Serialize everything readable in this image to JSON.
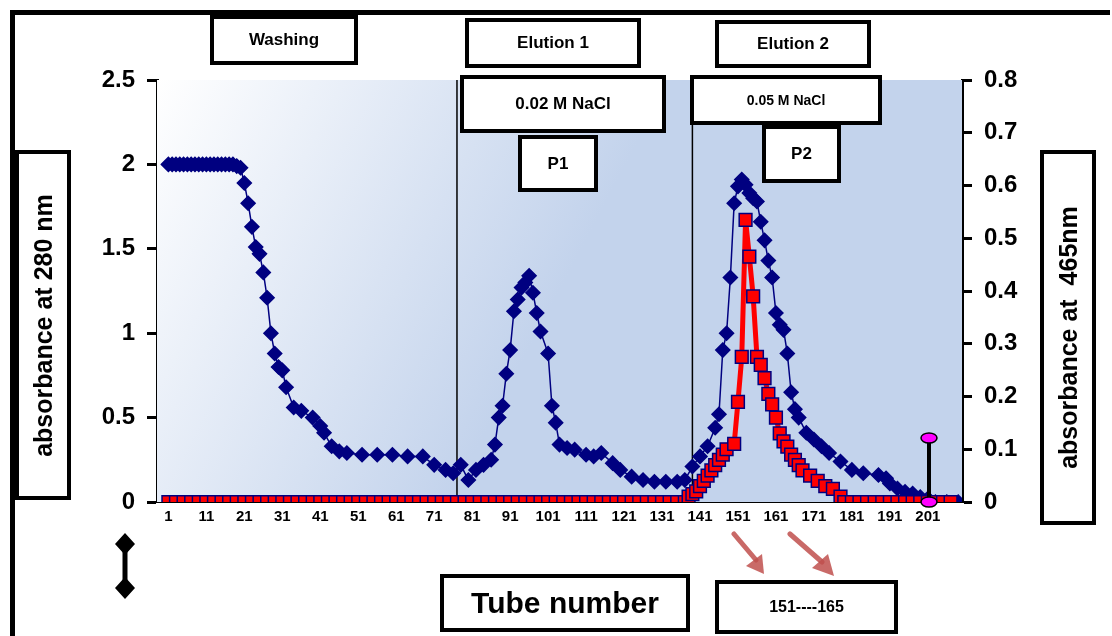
{
  "chart_data": {
    "type": "line",
    "xlabel": "Tube number",
    "ylabel": "absorbance at 280 nm",
    "y2label": "absorbance at  465nm",
    "xlim": [
      -2,
      210
    ],
    "xticks": [
      1,
      11,
      21,
      31,
      41,
      51,
      61,
      71,
      81,
      91,
      101,
      111,
      121,
      131,
      141,
      151,
      161,
      171,
      181,
      191,
      201
    ],
    "ylim": [
      0,
      2.5
    ],
    "yticks": [
      0,
      0.5,
      1,
      1.5,
      2,
      2.5
    ],
    "y2lim": [
      0,
      0.8
    ],
    "y2ticks": [
      0,
      0.1,
      0.2,
      0.3,
      0.4,
      0.5,
      0.6,
      0.7,
      0.8
    ],
    "legend": false,
    "series": [
      {
        "color": "#000080",
        "marker": "diamond",
        "x": [
          1,
          2,
          3,
          4,
          5,
          6,
          7,
          8,
          9,
          10,
          11,
          12,
          13,
          14,
          15,
          16,
          17,
          18,
          19,
          20,
          21,
          22,
          23,
          24,
          25,
          26,
          27,
          28,
          29,
          30,
          31,
          32,
          34,
          36,
          39,
          41,
          42,
          44,
          46,
          48,
          52,
          56,
          60,
          64,
          68,
          71,
          74,
          76,
          78,
          80,
          82,
          84,
          86,
          87,
          88,
          89,
          90,
          91,
          92,
          93,
          94,
          95,
          96,
          97,
          98,
          99,
          101,
          102,
          103,
          104,
          106,
          108,
          111,
          113,
          115,
          118,
          120,
          123,
          126,
          129,
          132,
          135,
          137,
          139,
          141,
          143,
          145,
          146,
          147,
          148,
          149,
          150,
          151,
          152,
          153,
          154,
          155,
          156,
          157,
          158,
          159,
          160,
          161,
          162,
          163,
          164,
          165,
          166,
          167,
          169,
          171,
          173,
          175,
          178,
          181,
          184,
          188,
          190,
          191,
          193,
          195,
          197,
          199,
          201,
          203,
          206,
          209
        ],
        "values": [
          2,
          2,
          2,
          2,
          2,
          2,
          2,
          2,
          2,
          2,
          2,
          2,
          2,
          2,
          2,
          2,
          2,
          2,
          1.99,
          1.98,
          1.89,
          1.77,
          1.63,
          1.51,
          1.47,
          1.36,
          1.21,
          1.0,
          0.88,
          0.8,
          0.78,
          0.68,
          0.56,
          0.54,
          0.5,
          0.45,
          0.41,
          0.33,
          0.3,
          0.29,
          0.28,
          0.28,
          0.28,
          0.27,
          0.27,
          0.22,
          0.19,
          0.17,
          0.22,
          0.13,
          0.19,
          0.22,
          0.25,
          0.34,
          0.5,
          0.57,
          0.76,
          0.9,
          1.13,
          1.2,
          1.27,
          1.3,
          1.34,
          1.24,
          1.12,
          1.01,
          0.88,
          0.57,
          0.47,
          0.34,
          0.32,
          0.31,
          0.28,
          0.27,
          0.29,
          0.23,
          0.19,
          0.15,
          0.13,
          0.12,
          0.12,
          0.12,
          0.13,
          0.21,
          0.27,
          0.33,
          0.44,
          0.52,
          0.9,
          1.0,
          1.33,
          1.77,
          1.87,
          1.91,
          1.88,
          1.83,
          1.8,
          1.78,
          1.66,
          1.55,
          1.43,
          1.33,
          1.12,
          1.05,
          1.02,
          0.88,
          0.65,
          0.55,
          0.5,
          0.41,
          0.37,
          0.33,
          0.29,
          0.24,
          0.19,
          0.17,
          0.16,
          0.14,
          0.11,
          0.08,
          0.06,
          0.05,
          0.03,
          0.02,
          0,
          0,
          0
        ]
      },
      {
        "color": "#ff0000",
        "marker": "square",
        "axis": "y2",
        "x": [
          1,
          3,
          5,
          7,
          9,
          11,
          13,
          15,
          17,
          19,
          21,
          23,
          25,
          27,
          29,
          31,
          33,
          35,
          37,
          39,
          41,
          43,
          45,
          47,
          49,
          51,
          53,
          55,
          57,
          59,
          61,
          63,
          65,
          67,
          69,
          71,
          73,
          75,
          77,
          79,
          81,
          83,
          85,
          87,
          89,
          91,
          93,
          95,
          97,
          99,
          101,
          103,
          105,
          107,
          109,
          111,
          113,
          115,
          117,
          119,
          121,
          123,
          125,
          127,
          129,
          131,
          133,
          135,
          137,
          138,
          139,
          140,
          141,
          142,
          143,
          144,
          145,
          146,
          147,
          148,
          150,
          151,
          152,
          153,
          154,
          155,
          156,
          157,
          158,
          159,
          160,
          161,
          162,
          163,
          164,
          165,
          166,
          167,
          168,
          170,
          172,
          174,
          176,
          178,
          179,
          181,
          183,
          185,
          187,
          189,
          191,
          193,
          195,
          197,
          199,
          201,
          203,
          205,
          207
        ],
        "values": [
          0,
          0,
          0,
          0,
          0,
          0,
          0,
          0,
          0,
          0,
          0,
          0,
          0,
          0,
          0,
          0,
          0,
          0,
          0,
          0,
          0,
          0,
          0,
          0,
          0,
          0,
          0,
          0,
          0,
          0,
          0,
          0,
          0,
          0,
          0,
          0,
          0,
          0,
          0,
          0,
          0,
          0,
          0,
          0,
          0,
          0,
          0,
          0,
          0,
          0,
          0,
          0,
          0,
          0,
          0,
          0,
          0,
          0,
          0,
          0,
          0,
          0,
          0,
          0,
          0,
          0,
          0,
          0,
          0,
          0.01,
          0.015,
          0.02,
          0.03,
          0.04,
          0.05,
          0.06,
          0.07,
          0.08,
          0.09,
          0.1,
          0.11,
          0.19,
          0.275,
          0.535,
          0.465,
          0.39,
          0.275,
          0.26,
          0.235,
          0.205,
          0.185,
          0.16,
          0.13,
          0.115,
          0.105,
          0.09,
          0.08,
          0.07,
          0.06,
          0.05,
          0.04,
          0.03,
          0.025,
          0.01,
          0,
          0,
          0,
          0,
          0,
          0,
          0,
          0,
          0,
          0,
          0,
          0,
          0,
          0,
          0
        ]
      }
    ],
    "ref_lines": [
      {
        "axis": "x",
        "value": 77,
        "color": "#000000"
      },
      {
        "axis": "x",
        "value": 139,
        "color": "#000000"
      }
    ],
    "annotations": [
      "Washing",
      "Elution 1",
      "0.02 M NaCl",
      "P1",
      "Elution 2",
      "0.05 M NaCl",
      "P2",
      "151----165"
    ]
  }
}
